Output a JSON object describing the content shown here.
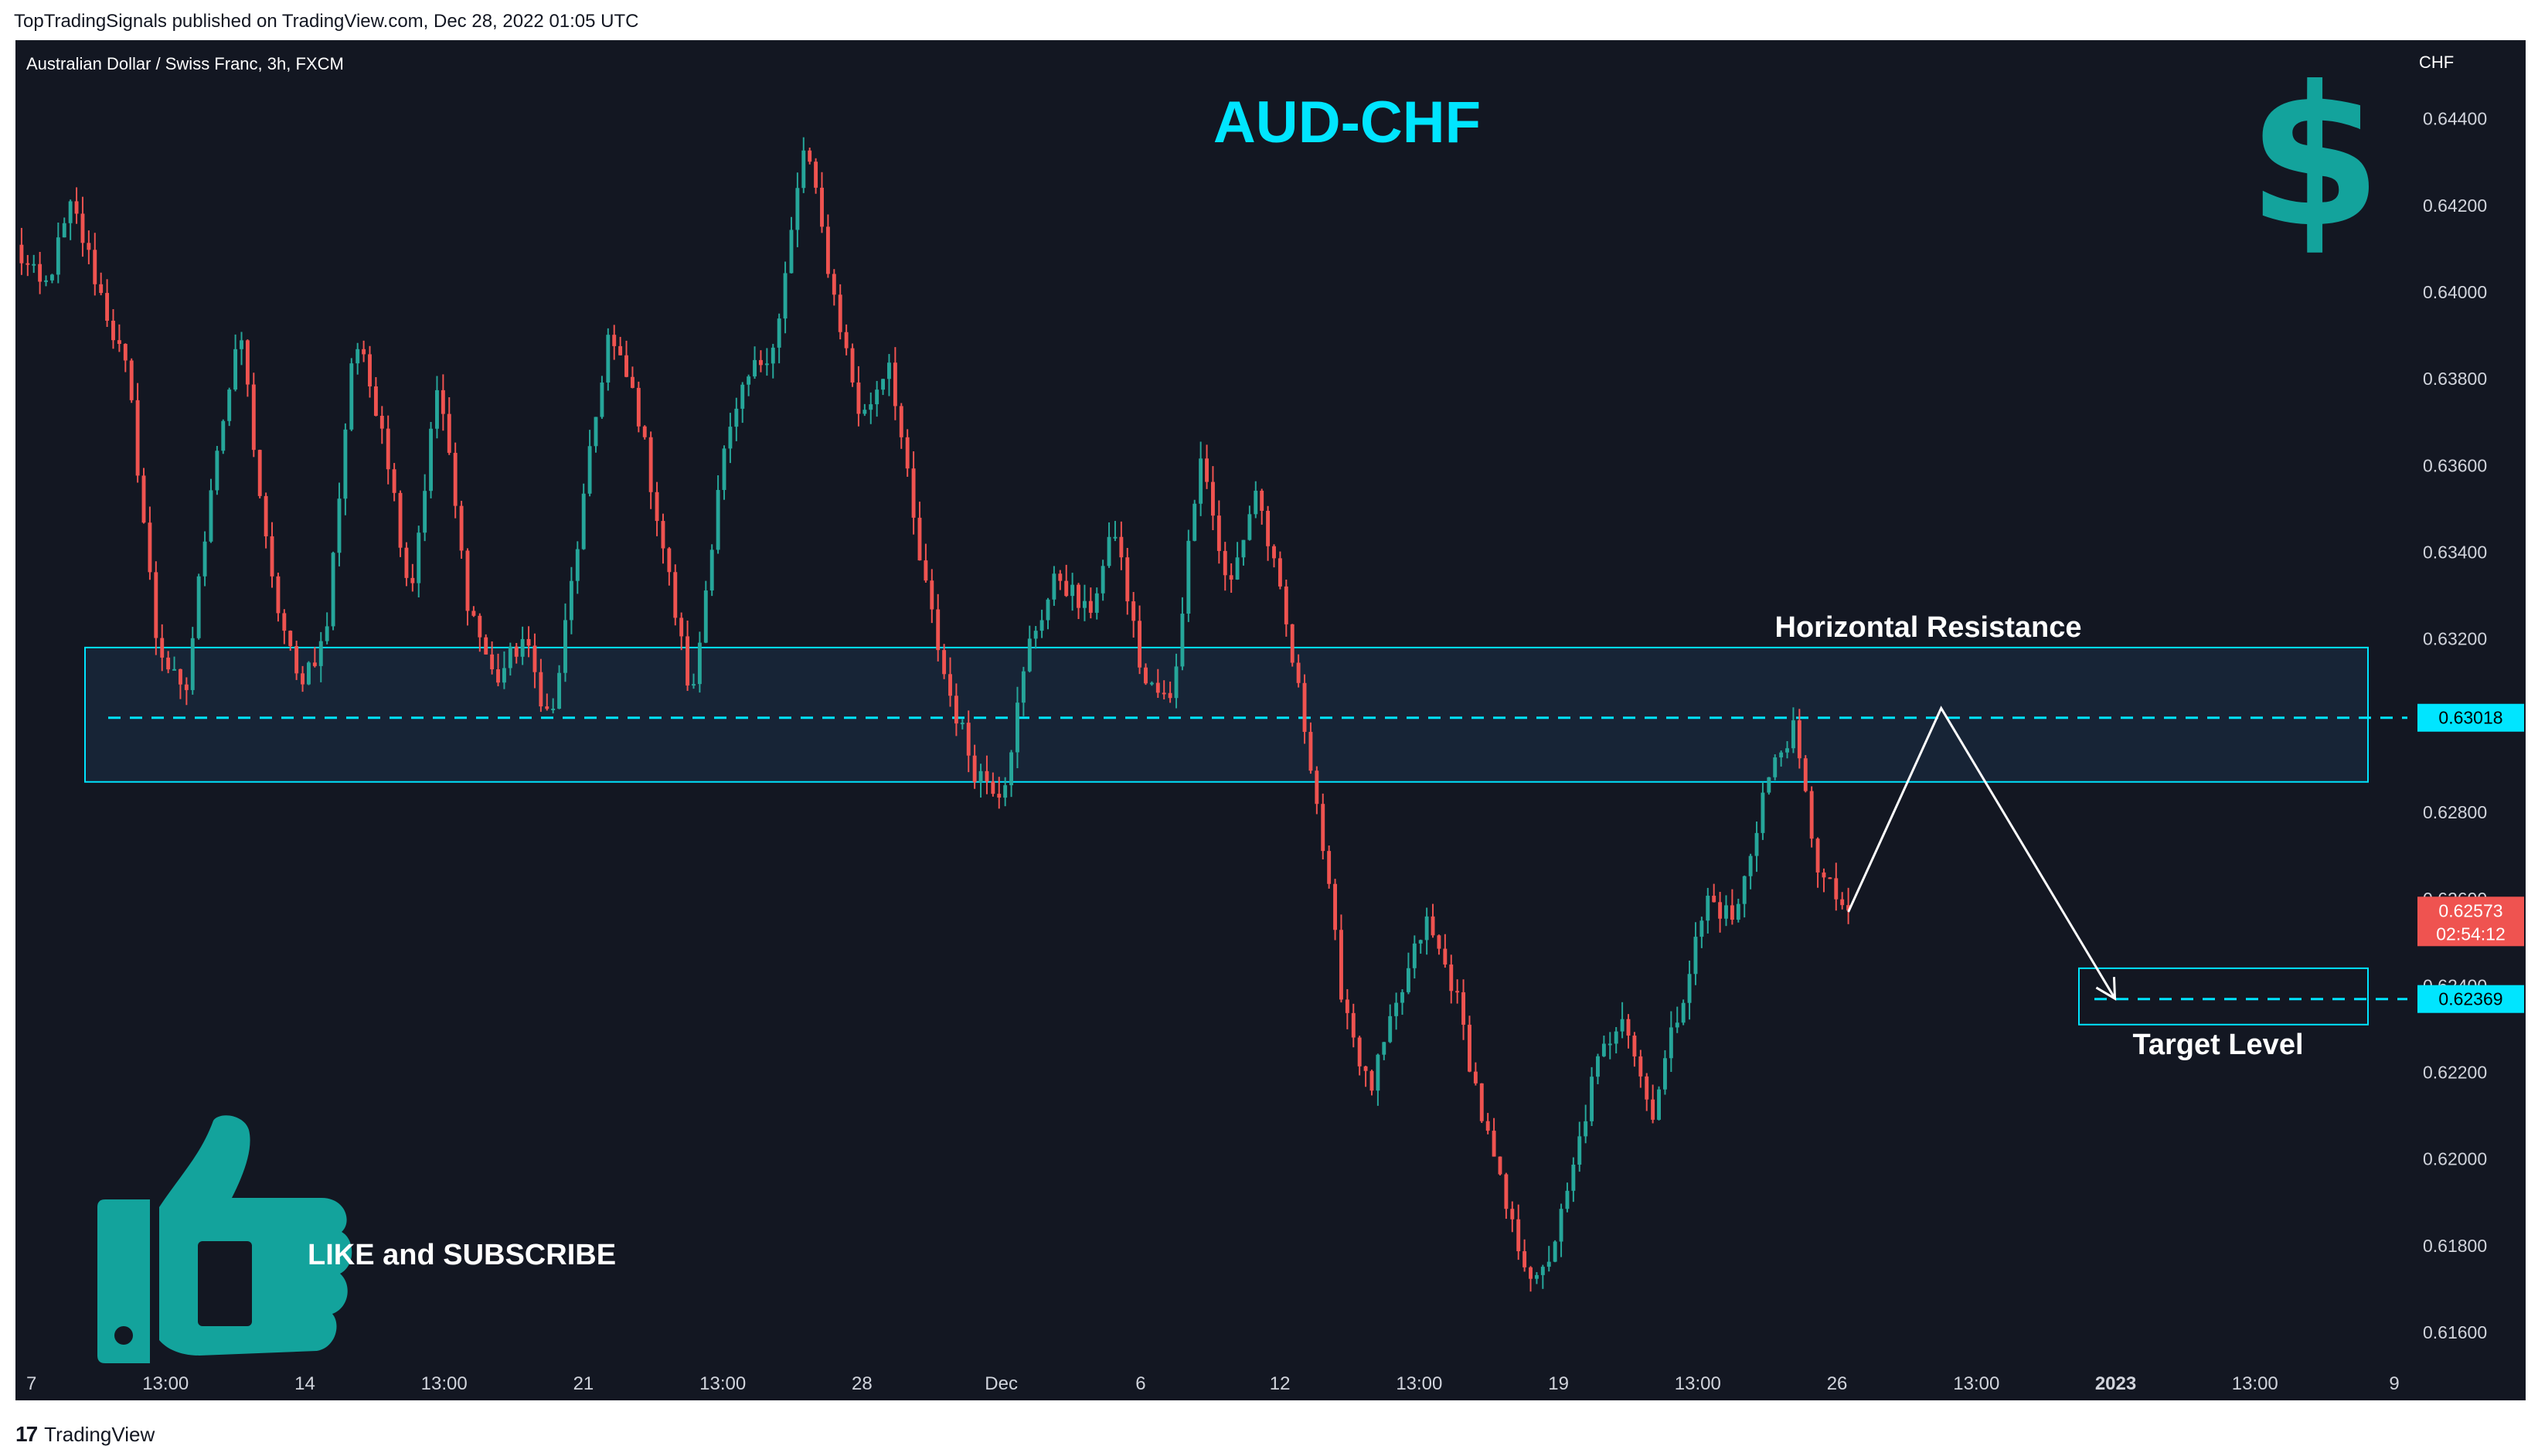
{
  "header": {
    "published_line": "TopTradingSignals published on TradingView.com, Dec 28, 2022 01:05 UTC"
  },
  "footer": {
    "logo_glyph": "17",
    "brand": "TradingView"
  },
  "chart_data": {
    "type": "candlestick",
    "symbol_line": "Australian Dollar / Swiss Franc, 3h, FXCM",
    "title": "AUD-CHF",
    "currency_label": "CHF",
    "ylim": [
      0.6155,
      0.6451
    ],
    "y_ticks": [
      "0.64400",
      "0.64200",
      "0.64000",
      "0.63800",
      "0.63600",
      "0.63400",
      "0.63200",
      "0.62800",
      "0.62600",
      "0.62400",
      "0.62200",
      "0.62000",
      "0.61800",
      "0.61600"
    ],
    "x_ticks": [
      "7",
      "13:00",
      "14",
      "13:00",
      "21",
      "13:00",
      "28",
      "Dec",
      "6",
      "12",
      "13:00",
      "19",
      "13:00",
      "26",
      "13:00",
      "2023",
      "13:00",
      "9"
    ],
    "bold_x_ticks": [
      "2023"
    ],
    "colors": {
      "up": "#26a69a",
      "down": "#ef5350",
      "accent": "#00e5ff",
      "background": "#131722",
      "zone_fill": "#172436",
      "axis_text": "#d1d4dc"
    },
    "candles_summary": {
      "segments": [
        {
          "price": 0.641
        },
        {
          "price": 0.64
        },
        {
          "price": 0.642
        },
        {
          "price": 0.64
        },
        {
          "price": 0.638
        },
        {
          "price": 0.632
        },
        {
          "price": 0.6305
        },
        {
          "price": 0.636
        },
        {
          "price": 0.639
        },
        {
          "price": 0.6335
        },
        {
          "price": 0.631
        },
        {
          "price": 0.632
        },
        {
          "price": 0.639
        },
        {
          "price": 0.637
        },
        {
          "price": 0.633
        },
        {
          "price": 0.638
        },
        {
          "price": 0.633
        },
        {
          "price": 0.631
        },
        {
          "price": 0.632
        },
        {
          "price": 0.63
        },
        {
          "price": 0.6345
        },
        {
          "price": 0.639
        },
        {
          "price": 0.6375
        },
        {
          "price": 0.634
        },
        {
          "price": 0.6305
        },
        {
          "price": 0.636
        },
        {
          "price": 0.638
        },
        {
          "price": 0.639
        },
        {
          "price": 0.6435
        },
        {
          "price": 0.64
        },
        {
          "price": 0.637
        },
        {
          "price": 0.6385
        },
        {
          "price": 0.634
        },
        {
          "price": 0.631
        },
        {
          "price": 0.629
        },
        {
          "price": 0.6285
        },
        {
          "price": 0.632
        },
        {
          "price": 0.6335
        },
        {
          "price": 0.6325
        },
        {
          "price": 0.6345
        },
        {
          "price": 0.631
        },
        {
          "price": 0.6305
        },
        {
          "price": 0.6365
        },
        {
          "price": 0.633
        },
        {
          "price": 0.6355
        },
        {
          "price": 0.6325
        },
        {
          "price": 0.629
        },
        {
          "price": 0.624
        },
        {
          "price": 0.6215
        },
        {
          "price": 0.6235
        },
        {
          "price": 0.6255
        },
        {
          "price": 0.624
        },
        {
          "price": 0.621
        },
        {
          "price": 0.6185
        },
        {
          "price": 0.617
        },
        {
          "price": 0.619
        },
        {
          "price": 0.622
        },
        {
          "price": 0.6235
        },
        {
          "price": 0.621
        },
        {
          "price": 0.6235
        },
        {
          "price": 0.626
        },
        {
          "price": 0.6255
        },
        {
          "price": 0.6285
        },
        {
          "price": 0.63
        },
        {
          "price": 0.6265
        },
        {
          "price": 0.6257
        }
      ]
    },
    "resistance_zone": {
      "label": "Horizontal Resistance",
      "top": 0.6318,
      "bottom": 0.6287,
      "level": 0.63018,
      "level_label": "0.63018"
    },
    "target_zone": {
      "label": "Target Level",
      "top": 0.6244,
      "bottom": 0.6231,
      "level": 0.62369,
      "level_label": "0.62369"
    },
    "last_price": {
      "value": "0.62573",
      "countdown": "02:54:12",
      "price": 0.62573
    },
    "projection": [
      {
        "time_frac": 0.77,
        "price": 0.6257
      },
      {
        "time_frac": 0.809,
        "price": 0.6304
      },
      {
        "time_frac": 0.882,
        "price": 0.6237
      }
    ],
    "cta_text": "LIKE and SUBSCRIBE",
    "dollar_glyph": "$"
  }
}
